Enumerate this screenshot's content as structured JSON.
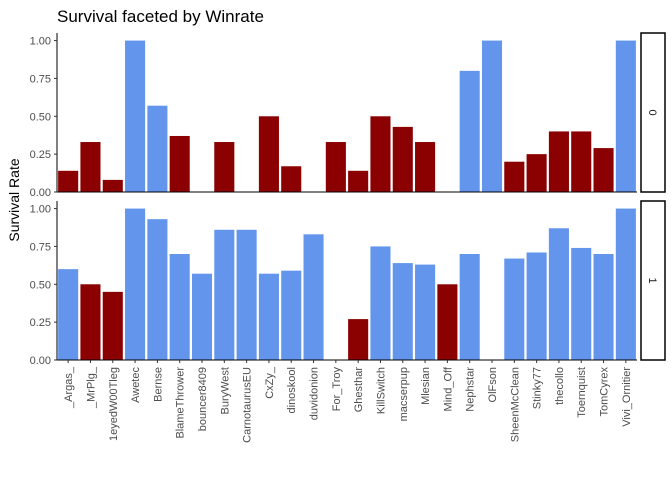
{
  "chart_data": {
    "type": "bar",
    "title": "Survival faceted by Winrate",
    "xlabel": "",
    "ylabel": "Survival Rate",
    "ylim": [
      0,
      1.05
    ],
    "yticks": [
      "0.00",
      "0.25",
      "0.50",
      "0.75",
      "1.00"
    ],
    "categories": [
      "_Argas_",
      "_MrPlg_",
      "1eyedW00Tleg",
      "Awetec",
      "Bernse",
      "BlameThrower",
      "bouncer8409",
      "BuryWest",
      "CarnotaurusEU",
      "CxZy_",
      "dinoskool",
      "duvidonion",
      "For_Troy",
      "Ghesthar",
      "KillSwitch",
      "macserpup",
      "Mlesian",
      "Mind_Off",
      "Nephstar",
      "OlFson",
      "SheenMcClean",
      "Stinky77",
      "thecollo",
      "Toernquist",
      "TomCyrex",
      "Vivi_Ornitier"
    ],
    "facets": [
      {
        "label": "0",
        "values": [
          0.14,
          0.33,
          0.08,
          1.0,
          0.57,
          0.37,
          null,
          0.33,
          null,
          0.5,
          0.17,
          null,
          0.33,
          0.14,
          0.5,
          0.43,
          0.33,
          null,
          0.8,
          1.0,
          0.2,
          0.25,
          0.4,
          0.4,
          0.29,
          1.0
        ],
        "highlight": [
          true,
          true,
          true,
          false,
          false,
          true,
          null,
          true,
          null,
          true,
          true,
          null,
          true,
          true,
          true,
          true,
          true,
          null,
          false,
          false,
          true,
          true,
          true,
          true,
          true,
          false
        ]
      },
      {
        "label": "1",
        "values": [
          0.6,
          0.5,
          0.45,
          1.0,
          0.93,
          0.7,
          0.57,
          0.86,
          0.86,
          0.57,
          0.59,
          0.83,
          null,
          0.27,
          0.75,
          0.64,
          0.63,
          0.5,
          0.7,
          null,
          0.67,
          0.71,
          0.87,
          0.74,
          0.7,
          1.0
        ],
        "highlight": [
          false,
          true,
          true,
          false,
          false,
          false,
          false,
          false,
          false,
          false,
          false,
          false,
          null,
          true,
          false,
          false,
          false,
          true,
          false,
          null,
          false,
          false,
          false,
          false,
          false,
          false
        ]
      }
    ],
    "colors": {
      "highlight": "#8b0000",
      "default": "#6495ed"
    },
    "grid": false,
    "legend": "none"
  }
}
